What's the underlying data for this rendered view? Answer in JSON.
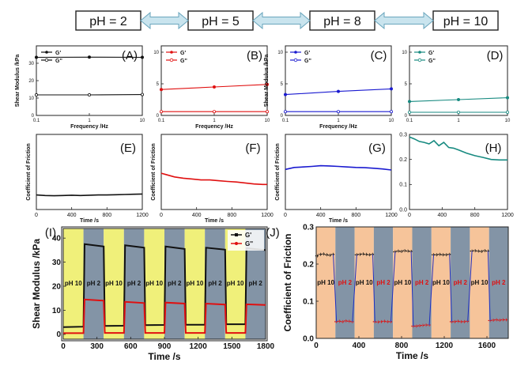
{
  "colors": {
    "black": "#111111",
    "red": "#e01010",
    "blue": "#1a1ad0",
    "teal": "#178a80",
    "arrow_fill": "#c9e4ee",
    "arrow_stroke": "#6aa6bd",
    "yellow_band": "#f0f07a",
    "gray_band": "#8394a6",
    "orange_band": "#f6c49a",
    "ph_label_red": "#e01010"
  },
  "header": {
    "labels": [
      "pH = 2",
      "pH = 5",
      "pH = 8",
      "pH = 10"
    ]
  },
  "shared": {
    "modulus_ylabel": "Shear Modulus /kPa",
    "friction_ylabel": "Coefficient of Friction",
    "freq_xlabel": "Frequency /Hz",
    "time_xlabel": "Time /s",
    "legend_gp": "G'",
    "legend_gpp": "G''"
  },
  "chart_data": [
    {
      "panel": "A",
      "type": "line",
      "xscale": "log",
      "xlim": [
        0.1,
        10
      ],
      "xticks": [
        "0.1",
        "1",
        "10"
      ],
      "ylim": [
        0,
        40
      ],
      "yticks": [
        "0",
        "10",
        "20",
        "30"
      ],
      "xlabel": "Frequency /Hz",
      "ylabel": "Shear Modulus /kPa",
      "color": "#111111",
      "series": [
        {
          "name": "G'",
          "x": [
            0.1,
            1,
            10
          ],
          "values": [
            33.4,
            33.5,
            33.4
          ]
        },
        {
          "name": "G''",
          "x": [
            0.1,
            1,
            10
          ],
          "values": [
            11.8,
            11.8,
            12.0
          ]
        }
      ]
    },
    {
      "panel": "B",
      "type": "line",
      "xscale": "log",
      "xlim": [
        0.1,
        10
      ],
      "xticks": [
        "0.1",
        "1",
        "10"
      ],
      "ylim": [
        0,
        11
      ],
      "yticks": [
        "0",
        "5",
        "10"
      ],
      "xlabel": "Frequency /Hz",
      "ylabel": "",
      "color": "#e01010",
      "series": [
        {
          "name": "G'",
          "x": [
            0.1,
            1,
            10
          ],
          "values": [
            4.1,
            4.5,
            4.9
          ]
        },
        {
          "name": "G''",
          "x": [
            0.1,
            1,
            10
          ],
          "values": [
            0.6,
            0.6,
            0.6
          ]
        }
      ]
    },
    {
      "panel": "C",
      "type": "line",
      "xscale": "log",
      "xlim": [
        0.1,
        10
      ],
      "xticks": [
        "0.1",
        "1",
        "10"
      ],
      "ylim": [
        0,
        11
      ],
      "yticks": [
        "0",
        "5",
        "10"
      ],
      "xlabel": "Frequency /Hz",
      "ylabel": "Shear Modulus /kPa",
      "color": "#1a1ad0",
      "series": [
        {
          "name": "G'",
          "x": [
            0.1,
            1,
            10
          ],
          "values": [
            3.3,
            3.8,
            4.2
          ]
        },
        {
          "name": "G''",
          "x": [
            0.1,
            1,
            10
          ],
          "values": [
            0.6,
            0.6,
            0.6
          ]
        }
      ]
    },
    {
      "panel": "D",
      "type": "line",
      "xscale": "log",
      "xlim": [
        0.1,
        10
      ],
      "xticks": [
        "0.1",
        "1",
        "10"
      ],
      "ylim": [
        0,
        11
      ],
      "yticks": [
        "0",
        "5",
        "10"
      ],
      "xlabel": "",
      "ylabel": "",
      "color": "#178a80",
      "series": [
        {
          "name": "G'",
          "x": [
            0.1,
            1,
            10
          ],
          "values": [
            2.2,
            2.5,
            2.8
          ]
        },
        {
          "name": "G''",
          "x": [
            0.1,
            1,
            10
          ],
          "values": [
            0.5,
            0.5,
            0.5
          ]
        }
      ]
    },
    {
      "panel": "E",
      "type": "line",
      "xlim": [
        0,
        1200
      ],
      "xticks": [
        "0",
        "400",
        "800",
        "1200"
      ],
      "ylim": [
        0,
        0.3
      ],
      "yticks": [],
      "xlabel": "Time /s",
      "ylabel": "Coefficient of Friction",
      "color": "#111111",
      "series": [
        {
          "name": "pH 2",
          "x": [
            0,
            100,
            200,
            300,
            400,
            500,
            600,
            700,
            800,
            900,
            1000,
            1100,
            1200
          ],
          "values": [
            0.058,
            0.056,
            0.055,
            0.056,
            0.057,
            0.056,
            0.057,
            0.058,
            0.058,
            0.059,
            0.06,
            0.061,
            0.062
          ]
        }
      ]
    },
    {
      "panel": "F",
      "type": "line",
      "xlim": [
        0,
        1200
      ],
      "xticks": [
        "0",
        "400",
        "800",
        "1200"
      ],
      "ylim": [
        0,
        0.3
      ],
      "yticks": [],
      "xlabel": "Time /s",
      "ylabel": "Coefficient of Friction",
      "color": "#e01010",
      "series": [
        {
          "name": "pH 5",
          "x": [
            0,
            50,
            150,
            250,
            350,
            450,
            550,
            650,
            750,
            850,
            950,
            1050,
            1150,
            1200
          ],
          "values": [
            0.145,
            0.14,
            0.13,
            0.125,
            0.122,
            0.118,
            0.118,
            0.115,
            0.112,
            0.11,
            0.106,
            0.102,
            0.1,
            0.1
          ]
        }
      ]
    },
    {
      "panel": "G",
      "type": "line",
      "xlim": [
        0,
        1200
      ],
      "xticks": [
        "0",
        "400",
        "800",
        "1200"
      ],
      "ylim": [
        0,
        0.3
      ],
      "yticks": [],
      "xlabel": "Time /s",
      "ylabel": "Coefficient of Friction",
      "color": "#1a1ad0",
      "series": [
        {
          "name": "pH 8",
          "x": [
            0,
            100,
            200,
            300,
            400,
            500,
            600,
            700,
            800,
            900,
            1000,
            1100,
            1200
          ],
          "values": [
            0.16,
            0.168,
            0.17,
            0.172,
            0.175,
            0.174,
            0.172,
            0.17,
            0.168,
            0.167,
            0.165,
            0.162,
            0.158
          ]
        }
      ]
    },
    {
      "panel": "H",
      "type": "line",
      "xlim": [
        0,
        1200
      ],
      "xticks": [
        "0",
        "400",
        "800",
        "1200"
      ],
      "ylim": [
        0,
        0.3
      ],
      "yticks": [
        "0.0",
        "0.1",
        "0.2",
        "0.3"
      ],
      "xlabel": "",
      "ylabel": "",
      "color": "#178a80",
      "series": [
        {
          "name": "pH 10",
          "x": [
            0,
            60,
            120,
            180,
            240,
            300,
            360,
            420,
            480,
            540,
            600,
            700,
            800,
            900,
            1000,
            1100,
            1200
          ],
          "values": [
            0.29,
            0.282,
            0.272,
            0.268,
            0.262,
            0.275,
            0.255,
            0.268,
            0.248,
            0.245,
            0.238,
            0.225,
            0.215,
            0.208,
            0.2,
            0.198,
            0.198
          ]
        }
      ]
    },
    {
      "panel": "I",
      "type": "line",
      "xlim": [
        0,
        1800
      ],
      "xticks": [
        "0",
        "300",
        "600",
        "900",
        "1200",
        "1500",
        "1800"
      ],
      "ylim": [
        -2,
        44
      ],
      "yticks": [
        "0",
        "10",
        "20",
        "30",
        "40"
      ],
      "xlabel": "Time /s",
      "ylabel": "Shear Modulus /kPa",
      "bands": [
        {
          "from": 0,
          "to": 180,
          "label": "pH 10"
        },
        {
          "from": 180,
          "to": 360,
          "label": "pH 2"
        },
        {
          "from": 360,
          "to": 540,
          "label": "pH 10"
        },
        {
          "from": 540,
          "to": 720,
          "label": "pH 2"
        },
        {
          "from": 720,
          "to": 900,
          "label": "pH 10"
        },
        {
          "from": 900,
          "to": 1080,
          "label": "pH 2"
        },
        {
          "from": 1080,
          "to": 1260,
          "label": "pH 10"
        },
        {
          "from": 1260,
          "to": 1440,
          "label": "pH 2"
        },
        {
          "from": 1440,
          "to": 1620,
          "label": "pH 10"
        },
        {
          "from": 1620,
          "to": 1800,
          "label": "pH 2"
        }
      ],
      "series": [
        {
          "name": "G'",
          "color": "#111111",
          "x": [
            0,
            180,
            190,
            360,
            370,
            540,
            550,
            720,
            730,
            900,
            910,
            1080,
            1090,
            1260,
            1270,
            1440,
            1450,
            1620,
            1630,
            1800
          ],
          "values": [
            3.0,
            3.2,
            37.5,
            36.5,
            3.5,
            3.6,
            37.0,
            36.0,
            3.8,
            3.9,
            36.5,
            35.5,
            4.0,
            4.0,
            36.0,
            35.2,
            4.2,
            4.2,
            35.8,
            35.0
          ]
        },
        {
          "name": "G''",
          "color": "#e01010",
          "x": [
            0,
            180,
            190,
            360,
            370,
            540,
            550,
            720,
            730,
            900,
            910,
            1080,
            1090,
            1260,
            1270,
            1440,
            1450,
            1620,
            1630,
            1800
          ],
          "values": [
            0.5,
            0.5,
            14.5,
            14.0,
            0.6,
            0.6,
            13.5,
            13.0,
            0.6,
            0.6,
            13.2,
            12.8,
            0.6,
            0.6,
            12.8,
            12.4,
            0.6,
            0.6,
            12.5,
            12.2
          ]
        }
      ]
    },
    {
      "panel": "J",
      "type": "line",
      "xlim": [
        0,
        1800
      ],
      "xticks": [
        "0",
        "400",
        "800",
        "1200",
        "1600"
      ],
      "ylim": [
        0,
        0.3
      ],
      "yticks": [
        "0.0",
        "0.1",
        "0.2",
        "0.3"
      ],
      "xlabel": "Time /s",
      "ylabel": "Coefficient of Friction",
      "bands": [
        {
          "from": 0,
          "to": 180,
          "label": "pH 10"
        },
        {
          "from": 180,
          "to": 360,
          "label": "pH 2"
        },
        {
          "from": 360,
          "to": 540,
          "label": "pH 10"
        },
        {
          "from": 540,
          "to": 720,
          "label": "pH 2"
        },
        {
          "from": 720,
          "to": 900,
          "label": "pH 10"
        },
        {
          "from": 900,
          "to": 1080,
          "label": "pH 2"
        },
        {
          "from": 1080,
          "to": 1260,
          "label": "pH 10"
        },
        {
          "from": 1260,
          "to": 1440,
          "label": "pH 2"
        },
        {
          "from": 1440,
          "to": 1620,
          "label": "pH 10"
        },
        {
          "from": 1620,
          "to": 1800,
          "label": "pH 2"
        }
      ],
      "series": [
        {
          "name": "pH 10",
          "color": "#111111",
          "x": [
            10,
            40,
            70,
            100,
            130,
            160,
            380,
            410,
            440,
            470,
            500,
            530,
            740,
            770,
            800,
            830,
            860,
            890,
            1100,
            1130,
            1160,
            1190,
            1220,
            1250,
            1460,
            1490,
            1520,
            1550,
            1580,
            1610
          ],
          "values": [
            0.222,
            0.226,
            0.227,
            0.225,
            0.224,
            0.226,
            0.225,
            0.226,
            0.227,
            0.226,
            0.225,
            0.226,
            0.233,
            0.235,
            0.234,
            0.236,
            0.235,
            0.234,
            0.225,
            0.225,
            0.226,
            0.225,
            0.225,
            0.226,
            0.235,
            0.236,
            0.235,
            0.234,
            0.236,
            0.235
          ]
        },
        {
          "name": "pH 2",
          "color": "#e01010",
          "x": [
            190,
            220,
            250,
            280,
            310,
            340,
            550,
            580,
            610,
            640,
            670,
            700,
            910,
            940,
            970,
            1000,
            1030,
            1060,
            1270,
            1300,
            1330,
            1360,
            1390,
            1420,
            1630,
            1660,
            1690,
            1720,
            1750,
            1780
          ],
          "values": [
            0.045,
            0.046,
            0.045,
            0.047,
            0.046,
            0.045,
            0.045,
            0.044,
            0.045,
            0.046,
            0.045,
            0.045,
            0.033,
            0.033,
            0.034,
            0.035,
            0.036,
            0.036,
            0.045,
            0.045,
            0.046,
            0.045,
            0.045,
            0.046,
            0.048,
            0.049,
            0.05,
            0.049,
            0.05,
            0.05
          ]
        }
      ]
    }
  ]
}
